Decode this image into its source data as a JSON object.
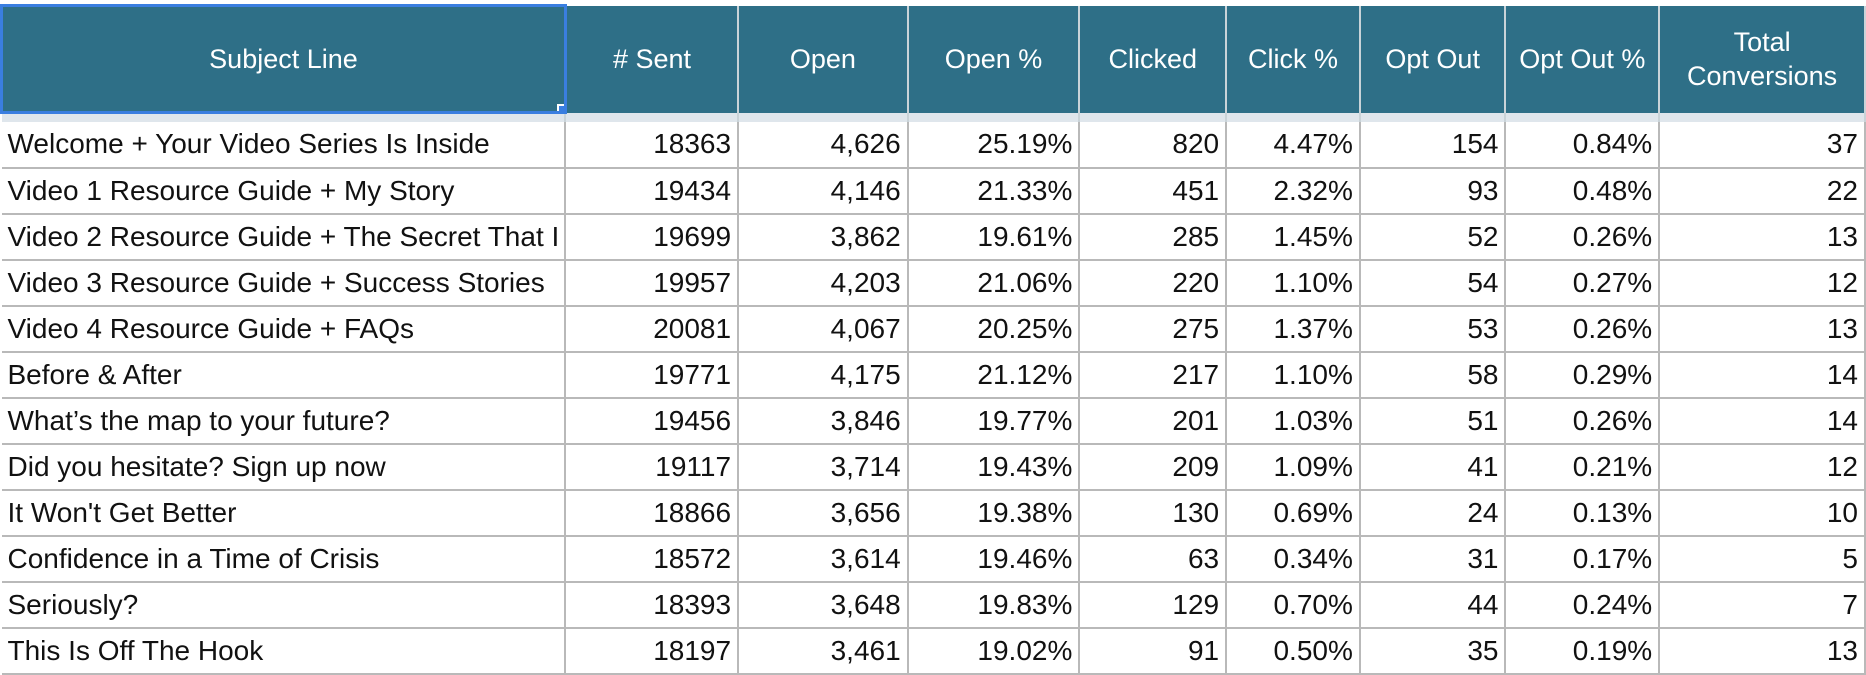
{
  "columns": [
    "Subject Line",
    "# Sent",
    "Open",
    "Open %",
    "Clicked",
    "Click %",
    "Opt Out",
    "Opt Out %",
    "Total Conversions"
  ],
  "rows": [
    [
      "Welcome + Your Video Series Is Inside",
      "18363",
      "4,626",
      "25.19%",
      "820",
      "4.47%",
      "154",
      "0.84%",
      "37"
    ],
    [
      "Video 1 Resource Guide + My Story",
      "19434",
      "4,146",
      "21.33%",
      "451",
      "2.32%",
      "93",
      "0.48%",
      "22"
    ],
    [
      "Video 2 Resource Guide + The Secret That I",
      "19699",
      "3,862",
      "19.61%",
      "285",
      "1.45%",
      "52",
      "0.26%",
      "13"
    ],
    [
      "Video 3 Resource Guide + Success Stories",
      "19957",
      "4,203",
      "21.06%",
      "220",
      "1.10%",
      "54",
      "0.27%",
      "12"
    ],
    [
      "Video 4 Resource Guide + FAQs",
      "20081",
      "4,067",
      "20.25%",
      "275",
      "1.37%",
      "53",
      "0.26%",
      "13"
    ],
    [
      "Before & After",
      "19771",
      "4,175",
      "21.12%",
      "217",
      "1.10%",
      "58",
      "0.29%",
      "14"
    ],
    [
      "What’s the map to your future?",
      "19456",
      "3,846",
      "19.77%",
      "201",
      "1.03%",
      "51",
      "0.26%",
      "14"
    ],
    [
      "Did you hesitate? Sign up now",
      "19117",
      "3,714",
      "19.43%",
      "209",
      "1.09%",
      "41",
      "0.21%",
      "12"
    ],
    [
      "It Won't Get Better",
      "18866",
      "3,656",
      "19.38%",
      "130",
      "0.69%",
      "24",
      "0.13%",
      "10"
    ],
    [
      "Confidence in a Time of Crisis",
      "18572",
      "3,614",
      "19.46%",
      "63",
      "0.34%",
      "31",
      "0.17%",
      "5"
    ],
    [
      "Seriously?",
      "18393",
      "3,648",
      "19.83%",
      "129",
      "0.70%",
      "44",
      "0.24%",
      "7"
    ],
    [
      "This Is Off The Hook",
      "18197",
      "3,461",
      "19.02%",
      "91",
      "0.50%",
      "35",
      "0.19%",
      "13"
    ]
  ],
  "colors": {
    "header_bg": "#2e6f87",
    "header_text": "#ffffff",
    "selection": "#3a7ee0",
    "gridline": "#b9b9b9"
  }
}
